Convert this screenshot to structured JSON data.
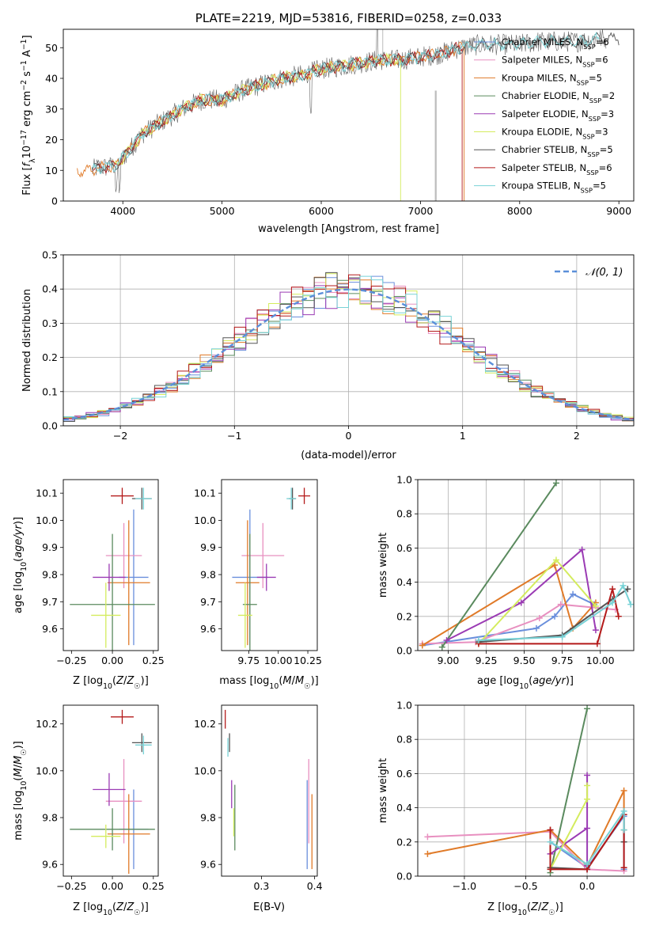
{
  "colors": {
    "Chabrier MILES": "#6a8fdc",
    "Salpeter MILES": "#e890c0",
    "Kroupa MILES": "#e07a28",
    "Chabrier ELODIE": "#5a8a5e",
    "Salpeter ELODIE": "#9b3bb4",
    "Kroupa ELODIE": "#d4ec5e",
    "Chabrier STELIB": "#555555",
    "Salpeter STELIB": "#b41a1a",
    "Kroupa STELIB": "#78d2d6"
  },
  "chart_data": [
    {
      "id": "spectrum",
      "type": "line",
      "title": "PLATE=2219, MJD=53816, FIBERID=0258, z=0.033",
      "xlabel": "wavelength [Angstrom, rest frame]",
      "ylabel": "Flux [f_λ 10^-17 erg cm^-2 s^-1 A^-1]",
      "xlim": [
        3400,
        9150
      ],
      "ylim": [
        0,
        56
      ],
      "xticks": [
        4000,
        5000,
        6000,
        7000,
        8000,
        9000
      ],
      "yticks": [
        0,
        10,
        20,
        30,
        40,
        50
      ],
      "legend_position": "top-right",
      "legend": [
        {
          "name": "Chabrier MILES",
          "nssp": "6"
        },
        {
          "name": "Salpeter MILES",
          "nssp": "6"
        },
        {
          "name": "Kroupa MILES",
          "nssp": "5"
        },
        {
          "name": "Chabrier ELODIE",
          "nssp": "2"
        },
        {
          "name": "Salpeter ELODIE",
          "nssp": "3"
        },
        {
          "name": "Kroupa ELODIE",
          "nssp": "3"
        },
        {
          "name": "Chabrier STELIB",
          "nssp": "5"
        },
        {
          "name": "Salpeter STELIB",
          "nssp": "6"
        },
        {
          "name": "Kroupa STELIB",
          "nssp": "5"
        }
      ],
      "continuum": {
        "x": [
          3690,
          3750,
          3850,
          3950,
          4050,
          4200,
          4400,
          4600,
          4800,
          5000,
          5200,
          5400,
          5600,
          5800,
          6000,
          6200,
          6400,
          6600,
          6800,
          7000,
          7200,
          7400,
          7600,
          7800,
          8000,
          8200,
          8400,
          8600,
          8800
        ],
        "y": [
          10,
          11,
          11,
          12,
          16,
          22,
          26,
          30,
          33,
          33,
          36,
          38,
          40,
          41,
          43,
          44,
          45,
          46,
          46,
          47,
          48,
          50,
          51,
          51,
          51,
          52,
          52,
          52,
          53
        ]
      },
      "models": {
        "Kroupa MILES": {
          "x": [
            3540,
            7440
          ],
          "drop_at": 7440
        },
        "Kroupa ELODIE": {
          "x": [
            3900,
            6800
          ],
          "drop_at": 6800
        },
        "Salpeter STELIB": {
          "x": [
            3700,
            7420
          ],
          "drop_at": 7420
        },
        "Chabrier STELIB": {
          "x": [
            3690,
            9000
          ]
        },
        "Kroupa STELIB": {
          "x": [
            3690,
            8800
          ]
        }
      }
    },
    {
      "id": "residuals",
      "type": "histogram",
      "xlabel": "(data-model)/error",
      "ylabel": "Normed distribution",
      "xlim": [
        -2.5,
        2.5
      ],
      "ylim": [
        0,
        0.5
      ],
      "xticks": [
        -2,
        -1,
        0,
        1,
        2
      ],
      "yticks": [
        0.0,
        0.1,
        0.2,
        0.3,
        0.4,
        0.5
      ],
      "bin_width": 0.1,
      "reference_curve": "normal(0,1)",
      "reference_label": "𝒩(0, 1)",
      "legend_position": "top-right",
      "series_order": [
        "Chabrier MILES",
        "Salpeter MILES",
        "Kroupa MILES",
        "Chabrier ELODIE",
        "Salpeter ELODIE",
        "Kroupa ELODIE",
        "Chabrier STELIB",
        "Salpeter STELIB",
        "Kroupa STELIB"
      ]
    },
    {
      "id": "age_vs_Z",
      "type": "errorbar",
      "xlabel": "Z [log10(Z/Z☉)]",
      "ylabel": "age [log10(age/yr)]",
      "xlim": [
        -0.3,
        0.28
      ],
      "ylim": [
        9.52,
        10.15
      ],
      "xticks": [
        -0.25,
        0.0,
        0.25
      ],
      "yticks": [
        9.6,
        9.7,
        9.8,
        9.9,
        10.0,
        10.1
      ],
      "points": [
        {
          "series": "Chabrier MILES",
          "x": 0.13,
          "y": 9.79,
          "xerr": 0.09,
          "yerr": 0.25
        },
        {
          "series": "Salpeter MILES",
          "x": 0.07,
          "y": 9.87,
          "xerr": 0.11,
          "yerr": 0.12
        },
        {
          "series": "Kroupa MILES",
          "x": 0.1,
          "y": 9.77,
          "xerr": 0.13,
          "yerr": 0.23
        },
        {
          "series": "Chabrier ELODIE",
          "x": 0.0,
          "y": 9.69,
          "xerr": 0.26,
          "yerr": 0.26
        },
        {
          "series": "Salpeter ELODIE",
          "x": -0.02,
          "y": 9.79,
          "xerr": 0.1,
          "yerr": 0.05
        },
        {
          "series": "Kroupa ELODIE",
          "x": -0.04,
          "y": 9.65,
          "xerr": 0.09,
          "yerr": 0.12
        },
        {
          "series": "Chabrier STELIB",
          "x": 0.18,
          "y": 10.08,
          "xerr": 0.06,
          "yerr": 0.04
        },
        {
          "series": "Salpeter STELIB",
          "x": 0.06,
          "y": 10.09,
          "xerr": 0.07,
          "yerr": 0.03
        },
        {
          "series": "Kroupa STELIB",
          "x": 0.19,
          "y": 10.08,
          "xerr": 0.05,
          "yerr": 0.04
        }
      ]
    },
    {
      "id": "age_vs_mass",
      "type": "errorbar",
      "xlabel": "mass [log10(M/M☉)]",
      "xlim": [
        9.52,
        10.33
      ],
      "ylim": [
        9.52,
        10.15
      ],
      "xticks": [
        9.75,
        10.0,
        10.25
      ],
      "yticks": [
        9.6,
        9.7,
        9.8,
        9.9,
        10.0,
        10.1
      ],
      "points": [
        {
          "series": "Chabrier MILES",
          "x": 9.76,
          "y": 9.79,
          "xerr": 0.15,
          "yerr": 0.25
        },
        {
          "series": "Salpeter MILES",
          "x": 9.87,
          "y": 9.87,
          "xerr": 0.18,
          "yerr": 0.12
        },
        {
          "series": "Kroupa MILES",
          "x": 9.74,
          "y": 9.77,
          "xerr": 0.1,
          "yerr": 0.23
        },
        {
          "series": "Chabrier ELODIE",
          "x": 9.76,
          "y": 9.69,
          "xerr": 0.06,
          "yerr": 0.26
        },
        {
          "series": "Salpeter ELODIE",
          "x": 9.9,
          "y": 9.79,
          "xerr": 0.08,
          "yerr": 0.05
        },
        {
          "series": "Kroupa ELODIE",
          "x": 9.72,
          "y": 9.65,
          "xerr": 0.06,
          "yerr": 0.12
        },
        {
          "series": "Chabrier STELIB",
          "x": 10.12,
          "y": 10.08,
          "xerr": 0.03,
          "yerr": 0.04
        },
        {
          "series": "Salpeter STELIB",
          "x": 10.22,
          "y": 10.09,
          "xerr": 0.05,
          "yerr": 0.03
        },
        {
          "series": "Kroupa STELIB",
          "x": 10.11,
          "y": 10.08,
          "xerr": 0.04,
          "yerr": 0.04
        }
      ]
    },
    {
      "id": "weight_vs_age",
      "type": "line",
      "xlabel": "age [log10(age/yr)]",
      "ylabel": "mass weight",
      "xlim": [
        8.8,
        10.22
      ],
      "ylim": [
        0,
        1
      ],
      "xticks": [
        9.0,
        9.25,
        9.5,
        9.75,
        10.0
      ],
      "yticks": [
        0.0,
        0.2,
        0.4,
        0.6,
        0.8,
        1.0
      ],
      "series": [
        {
          "name": "Chabrier MILES",
          "x": [
            8.83,
            9.58,
            9.7,
            9.82,
            9.96
          ],
          "y": [
            0.03,
            0.13,
            0.2,
            0.33,
            0.27
          ]
        },
        {
          "name": "Salpeter MILES",
          "x": [
            8.83,
            9.18,
            9.6,
            9.74,
            10.1
          ],
          "y": [
            0.04,
            0.05,
            0.19,
            0.27,
            0.24
          ]
        },
        {
          "name": "Kroupa MILES",
          "x": [
            8.83,
            9.7,
            9.82,
            9.97
          ],
          "y": [
            0.03,
            0.5,
            0.13,
            0.28
          ]
        },
        {
          "name": "Chabrier ELODIE",
          "x": [
            8.96,
            9.71
          ],
          "y": [
            0.02,
            0.98
          ]
        },
        {
          "name": "Salpeter ELODIE",
          "x": [
            8.99,
            9.48,
            9.88,
            9.97
          ],
          "y": [
            0.06,
            0.28,
            0.59,
            0.12
          ]
        },
        {
          "name": "Kroupa ELODIE",
          "x": [
            9.2,
            9.71,
            9.97
          ],
          "y": [
            0.04,
            0.53,
            0.26
          ]
        },
        {
          "name": "Chabrier STELIB",
          "x": [
            9.2,
            9.75,
            10.08,
            10.18
          ],
          "y": [
            0.05,
            0.09,
            0.3,
            0.36
          ]
        },
        {
          "name": "Salpeter STELIB",
          "x": [
            9.2,
            9.98,
            10.08,
            10.12
          ],
          "y": [
            0.04,
            0.04,
            0.36,
            0.2
          ]
        },
        {
          "name": "Kroupa STELIB",
          "x": [
            9.2,
            9.75,
            10.08,
            10.15,
            10.2
          ],
          "y": [
            0.06,
            0.08,
            0.28,
            0.38,
            0.27
          ]
        }
      ]
    },
    {
      "id": "mass_vs_Z",
      "type": "errorbar",
      "xlabel": "Z [log10(Z/Z☉)]",
      "ylabel": "mass [log10(M/M☉)]",
      "xlim": [
        -0.3,
        0.28
      ],
      "ylim": [
        9.55,
        10.28
      ],
      "xticks": [
        -0.25,
        0.0,
        0.25
      ],
      "yticks": [
        9.6,
        9.8,
        10.0,
        10.2
      ],
      "points": [
        {
          "series": "Chabrier MILES",
          "x": 0.13,
          "y": 9.75,
          "xerr": 0.09,
          "yerr": 0.17
        },
        {
          "series": "Salpeter MILES",
          "x": 0.07,
          "y": 9.87,
          "xerr": 0.11,
          "yerr": 0.18
        },
        {
          "series": "Kroupa MILES",
          "x": 0.1,
          "y": 9.73,
          "xerr": 0.13,
          "yerr": 0.17
        },
        {
          "series": "Chabrier ELODIE",
          "x": 0.0,
          "y": 9.75,
          "xerr": 0.26,
          "yerr": 0.09
        },
        {
          "series": "Salpeter ELODIE",
          "x": -0.02,
          "y": 9.92,
          "xerr": 0.1,
          "yerr": 0.07
        },
        {
          "series": "Kroupa ELODIE",
          "x": -0.04,
          "y": 9.72,
          "xerr": 0.09,
          "yerr": 0.05
        },
        {
          "series": "Chabrier STELIB",
          "x": 0.18,
          "y": 10.12,
          "xerr": 0.06,
          "yerr": 0.04
        },
        {
          "series": "Salpeter STELIB",
          "x": 0.06,
          "y": 10.23,
          "xerr": 0.07,
          "yerr": 0.03
        },
        {
          "series": "Kroupa STELIB",
          "x": 0.19,
          "y": 10.11,
          "xerr": 0.05,
          "yerr": 0.04
        }
      ]
    },
    {
      "id": "mass_vs_ebv",
      "type": "errorbar",
      "xlabel": "E(B-V)",
      "xlim": [
        0.225,
        0.405
      ],
      "ylim": [
        9.55,
        10.28
      ],
      "xticks": [
        0.3,
        0.4
      ],
      "yticks": [
        9.6,
        9.8,
        10.0,
        10.2
      ],
      "points": [
        {
          "series": "Chabrier MILES",
          "x": 0.386,
          "y": 9.77,
          "yerr": 0.19
        },
        {
          "series": "Salpeter MILES",
          "x": 0.389,
          "y": 9.87,
          "yerr": 0.18
        },
        {
          "series": "Kroupa MILES",
          "x": 0.395,
          "y": 9.74,
          "yerr": 0.16
        },
        {
          "series": "Chabrier ELODIE",
          "x": 0.25,
          "y": 9.8,
          "yerr": 0.14
        },
        {
          "series": "Salpeter ELODIE",
          "x": 0.244,
          "y": 9.9,
          "yerr": 0.06
        },
        {
          "series": "Kroupa ELODIE",
          "x": 0.248,
          "y": 9.78,
          "yerr": 0.06
        },
        {
          "series": "Chabrier STELIB",
          "x": 0.24,
          "y": 10.12,
          "yerr": 0.04
        },
        {
          "series": "Salpeter STELIB",
          "x": 0.232,
          "y": 10.22,
          "yerr": 0.04
        },
        {
          "series": "Kroupa STELIB",
          "x": 0.237,
          "y": 10.1,
          "yerr": 0.04
        }
      ]
    },
    {
      "id": "weight_vs_Z",
      "type": "line",
      "xlabel": "Z [log10(Z/Z☉)]",
      "ylabel": "mass weight",
      "xlim": [
        -1.38,
        0.38
      ],
      "ylim": [
        0,
        1
      ],
      "xticks": [
        -1.0,
        -0.5,
        0.0
      ],
      "yticks": [
        0.0,
        0.2,
        0.4,
        0.6,
        0.8,
        1.0
      ],
      "series": [
        {
          "name": "Chabrier MILES",
          "x": [
            -0.3,
            -0.3,
            0.0,
            0.3,
            0.3
          ],
          "y": [
            0.27,
            0.2,
            0.05,
            0.35,
            0.04
          ]
        },
        {
          "name": "Salpeter MILES",
          "x": [
            -1.3,
            -0.3,
            0.0,
            0.3
          ],
          "y": [
            0.23,
            0.26,
            0.04,
            0.03
          ]
        },
        {
          "name": "Kroupa MILES",
          "x": [
            -1.3,
            -0.3,
            0.0,
            0.3,
            0.3
          ],
          "y": [
            0.13,
            0.27,
            0.06,
            0.5,
            0.27
          ]
        },
        {
          "name": "Chabrier ELODIE",
          "x": [
            -0.3,
            0.0
          ],
          "y": [
            0.02,
            0.98
          ]
        },
        {
          "name": "Salpeter ELODIE",
          "x": [
            -0.3,
            0.0,
            0.0,
            0.0
          ],
          "y": [
            0.13,
            0.28,
            0.59,
            0.06
          ]
        },
        {
          "name": "Kroupa ELODIE",
          "x": [
            -0.3,
            0.0,
            0.0
          ],
          "y": [
            0.04,
            0.45,
            0.53
          ]
        },
        {
          "name": "Chabrier STELIB",
          "x": [
            -0.3,
            0.0,
            0.3,
            0.3
          ],
          "y": [
            0.05,
            0.04,
            0.36,
            0.2
          ]
        },
        {
          "name": "Salpeter STELIB",
          "x": [
            -0.3,
            -0.3,
            0.0,
            0.3,
            0.3
          ],
          "y": [
            0.27,
            0.04,
            0.04,
            0.36,
            0.05
          ]
        },
        {
          "name": "Kroupa STELIB",
          "x": [
            -0.3,
            0.0,
            0.3,
            0.3
          ],
          "y": [
            0.2,
            0.07,
            0.38,
            0.27
          ]
        }
      ]
    }
  ]
}
